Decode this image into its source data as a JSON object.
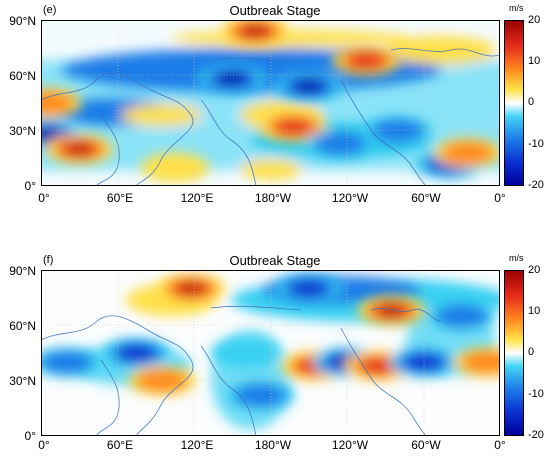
{
  "chart_data": [
    {
      "type": "heatmap",
      "panel_label": "(e)",
      "title": "Outbreak Stage",
      "x_ticks": [
        "0°",
        "60°E",
        "120°E",
        "180°W",
        "120°W",
        "60°W",
        "0°"
      ],
      "y_ticks": [
        "90°N",
        "60°N",
        "30°N",
        "0°"
      ],
      "xlim": [
        0,
        360
      ],
      "ylim": [
        0,
        90
      ],
      "colorbar": {
        "unit": "m/s",
        "range": [
          -20,
          20
        ],
        "ticks": [
          "20",
          "10",
          "0",
          "-10",
          "-20"
        ]
      },
      "features": [
        {
          "lon": 168,
          "lat": 84,
          "value": 18
        },
        {
          "lon": 255,
          "lat": 68,
          "value": 14
        },
        {
          "lon": 150,
          "lat": 58,
          "value": -20
        },
        {
          "lon": 210,
          "lat": 54,
          "value": -18
        },
        {
          "lon": 5,
          "lat": 45,
          "value": 12
        },
        {
          "lon": 5,
          "lat": 28,
          "value": -20
        },
        {
          "lon": 30,
          "lat": 20,
          "value": 18
        },
        {
          "lon": 198,
          "lat": 32,
          "value": 14
        },
        {
          "lon": 235,
          "lat": 23,
          "value": -12
        },
        {
          "lon": 320,
          "lat": 12,
          "value": -16
        },
        {
          "lon": 335,
          "lat": 18,
          "value": 12
        },
        {
          "lon": 280,
          "lat": 30,
          "value": -10
        },
        {
          "lon": 105,
          "lat": 10,
          "value": 8
        }
      ]
    },
    {
      "type": "heatmap",
      "panel_label": "(f)",
      "title": "Outbreak Stage",
      "x_ticks": [
        "0°",
        "60°E",
        "120°E",
        "180°W",
        "120°W",
        "60°W",
        "0°"
      ],
      "y_ticks": [
        "90°N",
        "60°N",
        "30°N",
        "0°"
      ],
      "xlim": [
        0,
        360
      ],
      "ylim": [
        0,
        90
      ],
      "colorbar": {
        "unit": "m/s",
        "range": [
          -20,
          20
        ],
        "ticks": [
          "20",
          "10",
          "0",
          "-10",
          "-20"
        ]
      },
      "features": [
        {
          "lon": 118,
          "lat": 80,
          "value": 18
        },
        {
          "lon": 210,
          "lat": 80,
          "value": -16
        },
        {
          "lon": 275,
          "lat": 68,
          "value": 20
        },
        {
          "lon": 330,
          "lat": 65,
          "value": -12
        },
        {
          "lon": 20,
          "lat": 40,
          "value": -12
        },
        {
          "lon": 75,
          "lat": 45,
          "value": -14
        },
        {
          "lon": 95,
          "lat": 30,
          "value": 10
        },
        {
          "lon": 215,
          "lat": 38,
          "value": 16
        },
        {
          "lon": 240,
          "lat": 40,
          "value": -18
        },
        {
          "lon": 265,
          "lat": 38,
          "value": 14
        },
        {
          "lon": 300,
          "lat": 40,
          "value": -16
        },
        {
          "lon": 350,
          "lat": 40,
          "value": 12
        },
        {
          "lon": 172,
          "lat": 22,
          "value": -10
        },
        {
          "lon": 160,
          "lat": 45,
          "value": -8
        }
      ]
    }
  ]
}
